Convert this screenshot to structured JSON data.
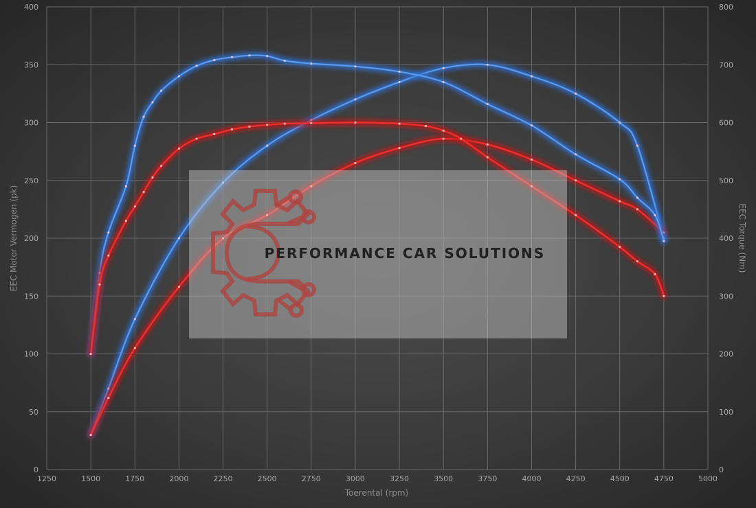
{
  "chart_data": {
    "type": "line",
    "xlabel": "Toerental (rpm)",
    "ylabel_left": "EEC Motor Vermogen (pk)",
    "ylabel_right": "EEC Torque (Nm)",
    "xlim": [
      1250,
      5000
    ],
    "ylim_left": [
      0,
      400
    ],
    "ylim_right": [
      0,
      800
    ],
    "x_ticks": [
      1250,
      1500,
      1750,
      2000,
      2250,
      2500,
      2750,
      3000,
      3250,
      3500,
      3750,
      4000,
      4250,
      4500,
      4750,
      5000
    ],
    "y_left_ticks": [
      0,
      50,
      100,
      150,
      200,
      250,
      300,
      350,
      400
    ],
    "y_right_ticks": [
      0,
      100,
      200,
      300,
      400,
      500,
      600,
      700,
      800
    ],
    "grid": true,
    "colors": {
      "tuned": "#5b9bf0",
      "stock": "#ee3030",
      "tuned_glow": "#2f6fd0",
      "stock_glow": "#c01515"
    },
    "series": [
      {
        "color": "tuned",
        "axis": "left",
        "x": [
          1500,
          1600,
          1750,
          2000,
          2250,
          2500,
          2750,
          3000,
          3250,
          3500,
          3750,
          4000,
          4250,
          4500,
          4600,
          4750
        ],
        "values": [
          30,
          70,
          130,
          200,
          248,
          280,
          302,
          320,
          335,
          347,
          350,
          340,
          325,
          300,
          280,
          200
        ]
      },
      {
        "color": "stock",
        "axis": "left",
        "x": [
          1500,
          1600,
          1750,
          2000,
          2250,
          2500,
          2750,
          3000,
          3250,
          3500,
          3750,
          4000,
          4250,
          4500,
          4600,
          4750
        ],
        "values": [
          30,
          62,
          105,
          158,
          200,
          220,
          245,
          265,
          278,
          286,
          281,
          268,
          250,
          232,
          225,
          205
        ]
      },
      {
        "color": "tuned",
        "axis": "right",
        "x": [
          1500,
          1550,
          1600,
          1700,
          1750,
          1800,
          1850,
          1900,
          2000,
          2100,
          2200,
          2300,
          2400,
          2500,
          2600,
          2750,
          3000,
          3250,
          3500,
          3750,
          4000,
          4250,
          4500,
          4600,
          4700,
          4750
        ],
        "values": [
          200,
          340,
          410,
          490,
          560,
          610,
          635,
          655,
          680,
          698,
          708,
          713,
          716,
          715,
          707,
          702,
          697,
          688,
          670,
          632,
          595,
          545,
          502,
          470,
          440,
          395
        ]
      },
      {
        "color": "stock",
        "axis": "right",
        "x": [
          1500,
          1550,
          1600,
          1700,
          1750,
          1800,
          1850,
          1900,
          2000,
          2100,
          2200,
          2300,
          2400,
          2500,
          2600,
          2750,
          3000,
          3250,
          3400,
          3500,
          3600,
          3750,
          4000,
          4250,
          4500,
          4600,
          4700,
          4750
        ],
        "values": [
          200,
          320,
          370,
          430,
          455,
          480,
          505,
          525,
          555,
          572,
          580,
          588,
          593,
          596,
          598,
          599,
          600,
          598,
          594,
          586,
          572,
          540,
          490,
          440,
          385,
          360,
          338,
          300
        ]
      }
    ]
  },
  "watermark": {
    "text": "PERFORMANCE CAR SOLUTIONS",
    "logo_icon": "gear-circuit-logo-icon"
  }
}
